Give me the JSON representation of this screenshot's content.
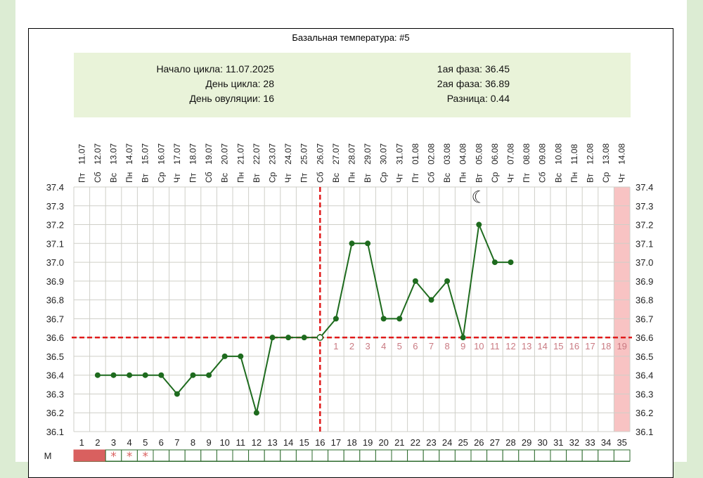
{
  "header": {
    "title": "Базальная температура: #5",
    "cycle_start": "Начало цикла: 11.07.2025",
    "cycle_day": "День цикла: 28",
    "ovulation_day": "День овуляции: 16",
    "phase1": "1ая фаза: 36.45",
    "phase2": "2ая фаза: 36.89",
    "difference": "Разница: 0.44"
  },
  "chart_data": {
    "type": "line",
    "title": "Базальная температура: #5",
    "days": [
      1,
      2,
      3,
      4,
      5,
      6,
      7,
      8,
      9,
      10,
      11,
      12,
      13,
      14,
      15,
      16,
      17,
      18,
      19,
      20,
      21,
      22,
      23,
      24,
      25,
      26,
      27,
      28,
      29,
      30,
      31,
      32,
      33,
      34,
      35
    ],
    "weekdays": [
      "Пт",
      "Сб",
      "Вс",
      "Пн",
      "Вт",
      "Ср",
      "Чт",
      "Пт",
      "Сб",
      "Вс",
      "Пн",
      "Вт",
      "Ср",
      "Чт",
      "Пт",
      "Сб",
      "Вс",
      "Пн",
      "Вт",
      "Ср",
      "Чт",
      "Пт",
      "Сб",
      "Вс",
      "Пн",
      "Вт",
      "Ср",
      "Чт",
      "Пт",
      "Сб",
      "Вс",
      "Пн",
      "Вт",
      "Ср",
      "Чт"
    ],
    "dates": [
      "11.07",
      "12.07",
      "13.07",
      "14.07",
      "15.07",
      "16.07",
      "17.07",
      "18.07",
      "19.07",
      "20.07",
      "21.07",
      "22.07",
      "23.07",
      "24.07",
      "25.07",
      "26.07",
      "27.07",
      "28.07",
      "29.07",
      "30.07",
      "31.07",
      "01.08",
      "02.08",
      "03.08",
      "04.08",
      "05.08",
      "06.08",
      "07.08",
      "08.08",
      "09.08",
      "10.08",
      "11.08",
      "12.08",
      "13.08",
      "14.08"
    ],
    "temperatures": [
      null,
      36.4,
      36.4,
      36.4,
      36.4,
      36.4,
      36.3,
      36.4,
      36.4,
      36.5,
      36.5,
      36.2,
      36.6,
      36.6,
      36.6,
      36.6,
      36.7,
      37.1,
      37.1,
      36.7,
      36.7,
      36.9,
      36.8,
      36.9,
      36.6,
      37.2,
      37.0,
      37.0,
      null,
      null,
      null,
      null,
      null,
      null,
      null
    ],
    "ylim": [
      36.1,
      37.4
    ],
    "yticks": [
      "37.4",
      "37.3",
      "37.2",
      "37.1",
      "37.0",
      "36.9",
      "36.8",
      "36.7",
      "36.6",
      "36.5",
      "36.4",
      "36.3",
      "36.2",
      "36.1"
    ],
    "coverline": 36.6,
    "ovulation_day": 16,
    "luteal_day_labels": [
      "1",
      "2",
      "3",
      "4",
      "5",
      "6",
      "7",
      "8",
      "9",
      "10",
      "11",
      "12",
      "13",
      "14",
      "15",
      "16",
      "17",
      "18",
      "19"
    ],
    "moon_icon_day": 26,
    "highlight_day": 35,
    "menstruation_label": "М",
    "menstruation_days": [
      1,
      2
    ],
    "spotting_days": [
      3,
      4,
      5
    ],
    "grid": true,
    "colors": {
      "line": "#1e6b1e",
      "coverline": "#e01b1b",
      "highlight": "#f8c3c3",
      "menstruation": "#d9605f",
      "phase_numbers": "#c97a82",
      "info_bg": "#e9f3d9"
    }
  }
}
